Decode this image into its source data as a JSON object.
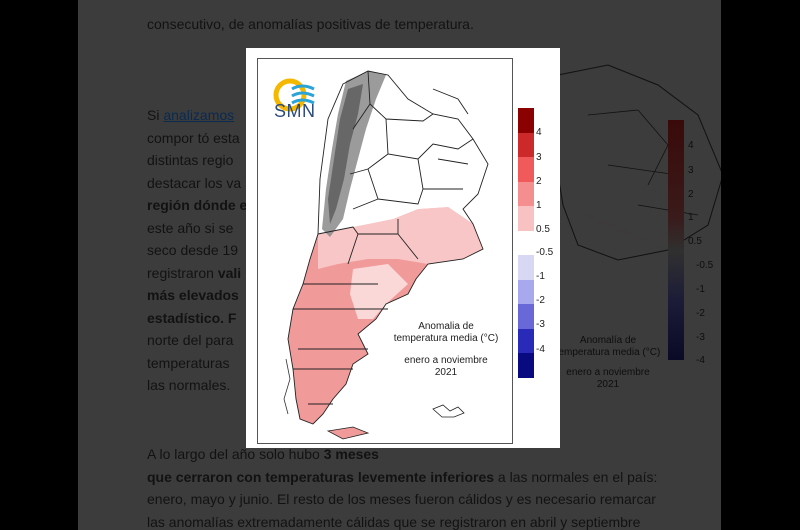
{
  "article": {
    "top_line": "consecutivo, de anomalías positivas de temperatura.",
    "para1": [
      {
        "text": "Si ",
        "link": "analizamos"
      },
      {
        "text": "compor tó esta"
      },
      {
        "text": "distintas regio"
      },
      {
        "text": "destacar los va"
      },
      {
        "text": "región dónde e",
        "bold": true
      },
      {
        "text": "este año si se"
      },
      {
        "text": "seco desde 19"
      },
      {
        "text": "registraron ",
        "bold_part": "vali"
      },
      {
        "text": "más elevados",
        "bold": true
      },
      {
        "text": "estadístico. F",
        "bold": true
      },
      {
        "text": "norte del para"
      },
      {
        "text": "temperaturas"
      },
      {
        "text": "las normales."
      }
    ],
    "para2_line1_start": "A lo largo del año solo hubo ",
    "para2_line1_bold": "3 meses",
    "para2_line2_bold": "que cerraron con temperaturas levemente inferiores",
    "para2_line2_rest": " a las normales en el país:",
    "para2_line3": "enero, mayo y junio. El resto de los meses fueron cálidos y es necesario remarcar",
    "para2_line4": "las anomalías extremadamente cálidas que se registraron en abril y septiembre"
  },
  "background_figure": {
    "legend_labels": [
      "4",
      "3",
      "2",
      "1",
      "0.5",
      "-0.5",
      "-1",
      "-2",
      "-3",
      "-4"
    ],
    "caption_line1": "Anomalía de",
    "caption_line2": "temperatura media (°C)",
    "caption_line3": "enero a noviembre",
    "caption_line4": "2021"
  },
  "figure": {
    "logo_text": "SMN",
    "caption_line1": "Anomalia de",
    "caption_line2": "temperatura media (°C)",
    "caption_line3": "enero a noviembre",
    "caption_line4": "2021",
    "legend": [
      {
        "label": "4",
        "color": "#8b0000"
      },
      {
        "label": "3",
        "color": "#cc2a2a"
      },
      {
        "label": "2",
        "color": "#f05a5a"
      },
      {
        "label": "1",
        "color": "#f58e8e"
      },
      {
        "label": "0.5",
        "color": "#f9c2c2"
      },
      {
        "label": "-0.5",
        "color": "#ffffff"
      },
      {
        "label": "-1",
        "color": "#d8d8f5"
      },
      {
        "label": "-2",
        "color": "#a8a8ee"
      },
      {
        "label": "-3",
        "color": "#6868d8"
      },
      {
        "label": "-4",
        "color": "#2a2ab8"
      },
      {
        "label": "",
        "color": "#0a0a80"
      }
    ]
  }
}
